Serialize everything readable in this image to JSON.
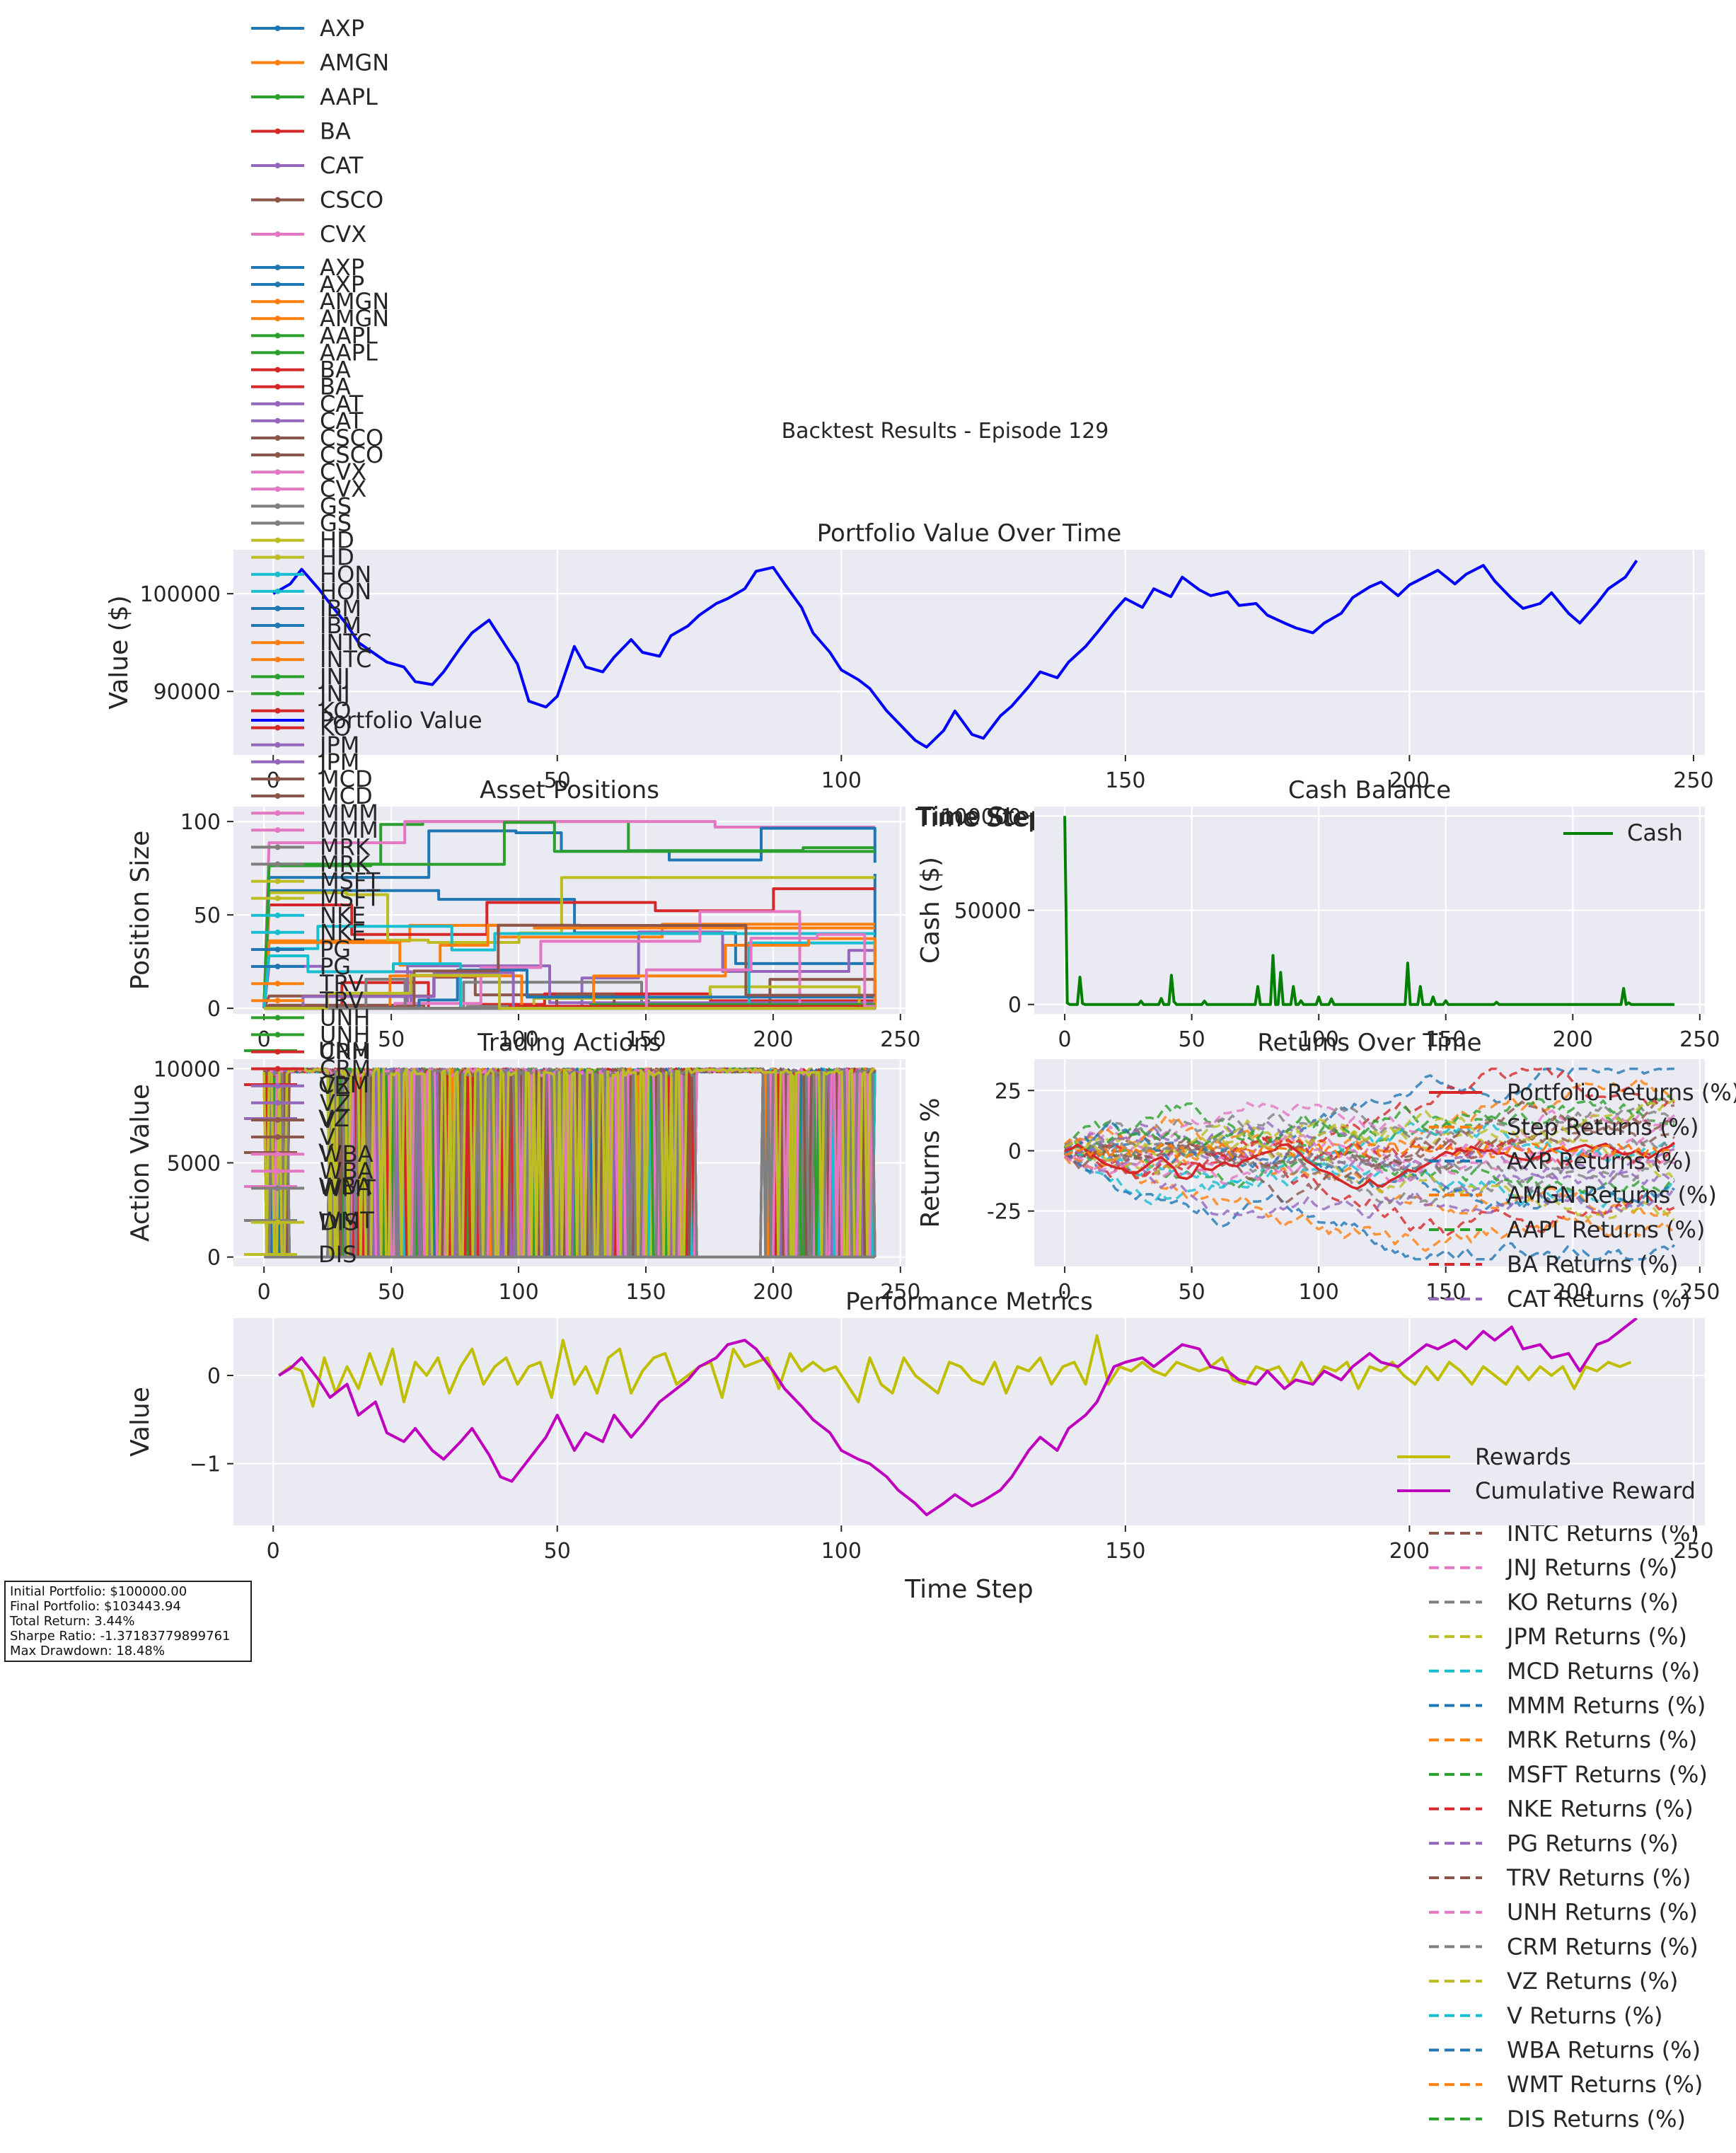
{
  "figure_title": "Backtest Results - Episode 129",
  "tickers": [
    "AXP",
    "AMGN",
    "AAPL",
    "BA",
    "CAT",
    "CSCO",
    "CVX",
    "GS",
    "HD",
    "HON",
    "IBM",
    "INTC",
    "JNJ",
    "KO",
    "JPM",
    "MCD",
    "MMM",
    "MRK",
    "MSFT",
    "NKE",
    "PG",
    "TRV",
    "UNH",
    "CRM",
    "VZ",
    "V",
    "WBA",
    "WMT",
    "DIS"
  ],
  "palette": [
    "#1f77b4",
    "#ff7f0e",
    "#2ca02c",
    "#d62728",
    "#9467bd",
    "#8c564b",
    "#e377c2",
    "#7f7f7f",
    "#bcbd22",
    "#17becf"
  ],
  "stats": {
    "initial": "Initial Portfolio: $100000.00",
    "final": "Final Portfolio: $103443.94",
    "total_return": "Total Return: 3.44%",
    "sharpe": "Sharpe Ratio: -1.37183779899761",
    "drawdown": "Max Drawdown: 18.48%"
  },
  "chart_data": [
    {
      "id": "portfolio",
      "type": "line",
      "title": "Portfolio Value Over Time",
      "xlabel": "Time Step",
      "ylabel": "Value ($)",
      "xlim": [
        -7,
        252
      ],
      "ylim": [
        83500,
        104500
      ],
      "xticks": [
        0,
        50,
        100,
        150,
        200,
        250
      ],
      "yticks": [
        90000,
        100000
      ],
      "ytick_labels": [
        "90000",
        "100000"
      ],
      "grid": true,
      "legend": [
        "Portfolio Value"
      ],
      "legend_loc": "lower left",
      "color": "#0000ff",
      "series": [
        {
          "name": "Portfolio Value",
          "x": [
            0,
            3,
            5,
            8,
            10,
            13,
            15,
            17,
            20,
            23,
            25,
            28,
            30,
            33,
            35,
            38,
            40,
            43,
            45,
            48,
            50,
            53,
            55,
            58,
            60,
            63,
            65,
            68,
            70,
            73,
            75,
            78,
            80,
            83,
            85,
            88,
            90,
            93,
            95,
            98,
            100,
            103,
            105,
            108,
            110,
            113,
            115,
            118,
            120,
            123,
            125,
            128,
            130,
            133,
            135,
            138,
            140,
            143,
            145,
            148,
            150,
            153,
            155,
            158,
            160,
            163,
            165,
            168,
            170,
            173,
            175,
            178,
            180,
            183,
            185,
            188,
            190,
            193,
            195,
            198,
            200,
            203,
            205,
            208,
            210,
            213,
            215,
            218,
            220,
            223,
            225,
            228,
            230,
            233,
            235,
            238,
            240
          ],
          "y": [
            100000,
            101000,
            102500,
            100500,
            99000,
            96800,
            95000,
            94200,
            93000,
            92500,
            91000,
            90700,
            92000,
            94500,
            96000,
            97300,
            95500,
            92800,
            89000,
            88400,
            89500,
            94600,
            92500,
            92000,
            93500,
            95300,
            94000,
            93600,
            95700,
            96700,
            97800,
            99000,
            99500,
            100500,
            102300,
            102700,
            101000,
            98600,
            96000,
            94000,
            92200,
            91200,
            90300,
            88000,
            86800,
            85000,
            84300,
            86000,
            88000,
            85600,
            85200,
            87500,
            88500,
            90500,
            92000,
            91400,
            93000,
            94600,
            96000,
            98200,
            99500,
            98600,
            100500,
            99700,
            101700,
            100400,
            99800,
            100200,
            98800,
            99000,
            97800,
            97000,
            96500,
            96000,
            97000,
            98000,
            99600,
            100700,
            101200,
            99800,
            100900,
            101800,
            102400,
            101000,
            102000,
            102900,
            101300,
            99500,
            98500,
            99000,
            100100,
            98000,
            97000,
            99000,
            100500,
            101700,
            103400
          ]
        }
      ]
    },
    {
      "id": "positions",
      "type": "line",
      "title": "Asset Positions",
      "xlabel": "Time Step",
      "ylabel": "Position Size",
      "xlim": [
        -12,
        252
      ],
      "ylim": [
        -3,
        108
      ],
      "xticks": [
        0,
        50,
        100,
        150,
        200,
        250
      ],
      "yticks": [
        0,
        50,
        100
      ],
      "grid": true,
      "legend_loc": "left (outside)",
      "final_values": {
        "AXP": 72,
        "AMGN": 45,
        "AAPL": 86,
        "BA": 64,
        "CAT": 31,
        "CSCO": 15,
        "CVX": 97,
        "GS": 9,
        "HD": 70,
        "HON": 40,
        "IBM": 78,
        "INTC": 43,
        "JNJ": 84,
        "KO": 4,
        "JPM": 3,
        "MCD": 9,
        "MMM": 2,
        "MRK": 1,
        "MSFT": 3,
        "NKE": 35,
        "PG": 6,
        "TRV": 1,
        "UNH": 2,
        "CRM": 1,
        "VZ": 0,
        "V": 7,
        "WBA": 1,
        "WMT": 0,
        "DIS": 0
      }
    },
    {
      "id": "cash",
      "type": "line",
      "title": "Cash Balance",
      "xlabel": "Time Step",
      "ylabel": "Cash ($)",
      "xlim": [
        -12,
        252
      ],
      "ylim": [
        -5000,
        105000
      ],
      "xticks": [
        0,
        50,
        100,
        150,
        200,
        250
      ],
      "yticks": [
        0,
        50000,
        100000
      ],
      "grid": true,
      "legend": [
        "Cash"
      ],
      "legend_loc": "upper right",
      "color": "#008000",
      "spikes": [
        [
          0,
          100000
        ],
        [
          1,
          800
        ],
        [
          6,
          14500
        ],
        [
          7,
          500
        ],
        [
          30,
          1800
        ],
        [
          38,
          3200
        ],
        [
          42,
          15500
        ],
        [
          43,
          1500
        ],
        [
          55,
          1800
        ],
        [
          76,
          9500
        ],
        [
          82,
          26000
        ],
        [
          85,
          17000
        ],
        [
          90,
          9500
        ],
        [
          93,
          2000
        ],
        [
          100,
          4000
        ],
        [
          105,
          3000
        ],
        [
          135,
          22000
        ],
        [
          140,
          9500
        ],
        [
          145,
          4000
        ],
        [
          150,
          2000
        ],
        [
          170,
          1200
        ],
        [
          220,
          8500
        ],
        [
          222,
          900
        ]
      ]
    },
    {
      "id": "actions",
      "type": "line",
      "title": "Trading Actions",
      "xlabel": "Time Step",
      "ylabel": "Action Value",
      "xlim": [
        -12,
        252
      ],
      "ylim": [
        -500,
        10500
      ],
      "xticks": [
        0,
        50,
        100,
        150,
        200,
        250
      ],
      "yticks": [
        0,
        5000,
        10000
      ],
      "grid": true,
      "legend": [
        "UNH",
        "CRM",
        "VZ",
        "V",
        "WBA",
        "WMT",
        "DIS"
      ],
      "legend_loc": "left"
    },
    {
      "id": "returns",
      "type": "line",
      "title": "Returns Over Time",
      "xlabel": "Time Step",
      "ylabel": "Returns %",
      "xlim": [
        -12,
        252
      ],
      "ylim": [
        -48,
        38
      ],
      "xticks": [
        0,
        50,
        100,
        150,
        200,
        250
      ],
      "yticks": [
        -25,
        0,
        25
      ],
      "grid": true,
      "legend": [
        "Portfolio Returns (%)",
        "Step Returns (%)",
        "AXP Returns (%)",
        "AMGN Returns (%)",
        "AAPL Returns (%)",
        "BA Returns (%)",
        "CAT Returns (%)",
        "INTC Returns (%)",
        "JNJ Returns (%)",
        "KO Returns (%)",
        "JPM Returns (%)",
        "MCD Returns (%)",
        "MMM Returns (%)",
        "MRK Returns (%)",
        "MSFT Returns (%)",
        "NKE Returns (%)",
        "PG Returns (%)",
        "TRV Returns (%)",
        "UNH Returns (%)",
        "CRM Returns (%)",
        "VZ Returns (%)",
        "V Returns (%)",
        "WBA Returns (%)",
        "WMT Returns (%)",
        "DIS Returns (%)"
      ],
      "legend_loc": "upper right"
    },
    {
      "id": "metrics",
      "type": "line",
      "title": "Performance Metrics",
      "xlabel": "Time Step",
      "ylabel": "Value",
      "xlim": [
        -7,
        252
      ],
      "ylim": [
        -1.7,
        0.65
      ],
      "xticks": [
        0,
        50,
        100,
        150,
        200,
        250
      ],
      "yticks": [
        -1,
        0
      ],
      "ytick_labels": [
        "−1",
        "0"
      ],
      "grid": true,
      "legend": [
        "Rewards",
        "Cumulative Reward"
      ],
      "legend_loc": "lower right",
      "series": [
        {
          "name": "Rewards",
          "color": "#bfbf00",
          "x": [
            1,
            3,
            5,
            7,
            9,
            11,
            13,
            15,
            17,
            19,
            21,
            23,
            25,
            27,
            29,
            31,
            33,
            35,
            37,
            39,
            41,
            43,
            45,
            47,
            49,
            51,
            53,
            55,
            57,
            59,
            61,
            63,
            65,
            67,
            69,
            71,
            73,
            75,
            77,
            79,
            81,
            83,
            85,
            87,
            89,
            91,
            93,
            95,
            97,
            99,
            101,
            103,
            105,
            107,
            109,
            111,
            113,
            115,
            117,
            119,
            121,
            123,
            125,
            127,
            129,
            131,
            133,
            135,
            137,
            139,
            141,
            143,
            145,
            147,
            149,
            151,
            153,
            155,
            157,
            159,
            161,
            163,
            165,
            167,
            169,
            171,
            173,
            175,
            177,
            179,
            181,
            183,
            185,
            187,
            189,
            191,
            193,
            195,
            197,
            199,
            201,
            203,
            205,
            207,
            209,
            211,
            213,
            215,
            217,
            219,
            221,
            223,
            225,
            227,
            229,
            231,
            233,
            235,
            237,
            239
          ],
          "y": [
            0,
            0.1,
            0.05,
            -0.35,
            0.2,
            -0.2,
            0.1,
            -0.15,
            0.25,
            -0.1,
            0.3,
            -0.3,
            0.15,
            0,
            0.2,
            -0.2,
            0.1,
            0.3,
            -0.1,
            0.1,
            0.2,
            -0.1,
            0.1,
            0.15,
            -0.25,
            0.4,
            -0.1,
            0.1,
            -0.2,
            0.2,
            0.3,
            -0.2,
            0.05,
            0.2,
            0.25,
            -0.1,
            0,
            0.1,
            0.15,
            -0.25,
            0.3,
            0.1,
            0.15,
            0.2,
            -0.15,
            0.25,
            0.05,
            0.15,
            0.05,
            0.1,
            -0.1,
            -0.3,
            0.2,
            -0.1,
            -0.2,
            0.2,
            0,
            -0.1,
            -0.2,
            0.15,
            0.1,
            -0.05,
            -0.1,
            0.15,
            -0.2,
            0.1,
            0.05,
            0.2,
            -0.1,
            0.1,
            0.15,
            -0.1,
            0.45,
            -0.1,
            0.1,
            0.05,
            0.15,
            0.05,
            0,
            0.15,
            0.1,
            0.05,
            0.1,
            0.2,
            -0.05,
            -0.1,
            0.1,
            0.05,
            0.1,
            -0.1,
            0.15,
            -0.1,
            0.1,
            0.05,
            0.15,
            -0.15,
            0.1,
            0.05,
            0.15,
            0,
            -0.1,
            0.1,
            -0.05,
            0.15,
            0.05,
            -0.1,
            0.1,
            0,
            -0.1,
            0.1,
            -0.05,
            0.1,
            0,
            0.1,
            -0.15,
            0.1,
            0.05,
            0.15,
            0.1,
            0.15
          ]
        },
        {
          "name": "Cumulative Reward",
          "color": "#bf00bf",
          "x": [
            1,
            3,
            5,
            8,
            10,
            13,
            15,
            18,
            20,
            23,
            25,
            28,
            30,
            33,
            35,
            38,
            40,
            42,
            45,
            48,
            50,
            53,
            55,
            58,
            60,
            63,
            65,
            68,
            70,
            73,
            75,
            78,
            80,
            83,
            85,
            88,
            90,
            93,
            95,
            98,
            100,
            103,
            105,
            108,
            110,
            113,
            115,
            118,
            120,
            123,
            125,
            128,
            130,
            133,
            135,
            138,
            140,
            143,
            145,
            148,
            150,
            153,
            155,
            158,
            160,
            163,
            165,
            168,
            170,
            173,
            175,
            178,
            180,
            183,
            185,
            188,
            190,
            193,
            195,
            198,
            200,
            203,
            205,
            208,
            210,
            213,
            215,
            218,
            220,
            223,
            225,
            228,
            230,
            233,
            235,
            238,
            240
          ],
          "y": [
            0,
            0.08,
            0.2,
            -0.05,
            -0.25,
            -0.1,
            -0.45,
            -0.3,
            -0.65,
            -0.75,
            -0.6,
            -0.85,
            -0.95,
            -0.75,
            -0.6,
            -0.9,
            -1.15,
            -1.2,
            -0.95,
            -0.7,
            -0.45,
            -0.85,
            -0.65,
            -0.75,
            -0.45,
            -0.7,
            -0.55,
            -0.3,
            -0.2,
            -0.05,
            0.1,
            0.2,
            0.35,
            0.4,
            0.3,
            0.05,
            -0.15,
            -0.35,
            -0.5,
            -0.65,
            -0.85,
            -0.95,
            -1.0,
            -1.15,
            -1.3,
            -1.45,
            -1.58,
            -1.45,
            -1.35,
            -1.48,
            -1.42,
            -1.3,
            -1.15,
            -0.85,
            -0.7,
            -0.85,
            -0.6,
            -0.45,
            -0.3,
            0.1,
            0.15,
            0.2,
            0.1,
            0.25,
            0.35,
            0.3,
            0.1,
            0.05,
            -0.05,
            -0.1,
            0.05,
            -0.15,
            -0.05,
            -0.1,
            0.05,
            -0.05,
            0.1,
            0.25,
            0.15,
            0.1,
            0.2,
            0.35,
            0.3,
            0.4,
            0.3,
            0.5,
            0.4,
            0.55,
            0.3,
            0.35,
            0.2,
            0.25,
            0.05,
            0.35,
            0.4,
            0.55,
            0.65
          ]
        }
      ]
    }
  ]
}
